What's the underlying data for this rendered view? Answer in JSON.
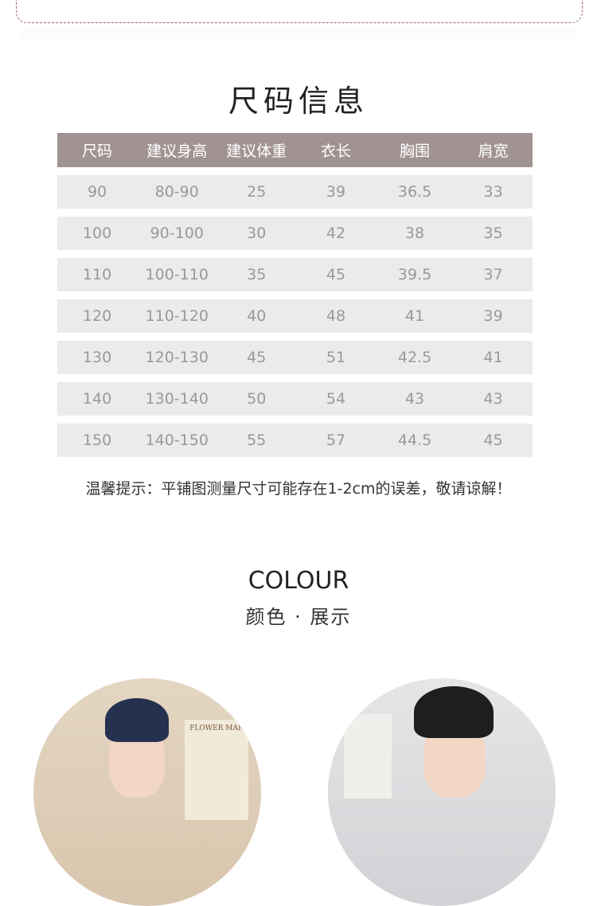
{
  "size_section": {
    "title": "尺码信息",
    "columns": [
      "尺码",
      "建议身高",
      "建议体重",
      "衣长",
      "胸围",
      "肩宽"
    ],
    "rows": [
      [
        "90",
        "80-90",
        "25",
        "39",
        "36.5",
        "33"
      ],
      [
        "100",
        "90-100",
        "30",
        "42",
        "38",
        "35"
      ],
      [
        "110",
        "100-110",
        "35",
        "45",
        "39.5",
        "37"
      ],
      [
        "120",
        "110-120",
        "40",
        "48",
        "41",
        "39"
      ],
      [
        "130",
        "120-130",
        "45",
        "51",
        "42.5",
        "41"
      ],
      [
        "140",
        "130-140",
        "50",
        "54",
        "43",
        "43"
      ],
      [
        "150",
        "140-150",
        "55",
        "57",
        "44.5",
        "45"
      ]
    ],
    "tip": "温馨提示：平铺图测量尺寸可能存在1-2cm的误差，敬请谅解！"
  },
  "colour_section": {
    "title": "COLOUR",
    "subtitle": "颜色 · 展示",
    "photo1_poster_text": "FLOWER MAR"
  },
  "colors": {
    "header_bg": "#a29393",
    "row_bg": "#ebebee",
    "cell_text": "#999999"
  }
}
